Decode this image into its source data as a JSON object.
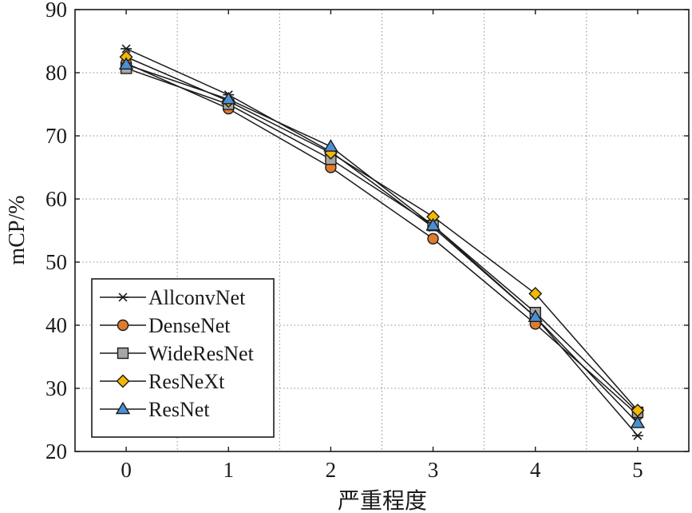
{
  "chart_data": {
    "type": "line",
    "xlabel": "严重程度",
    "ylabel": "mCP/%",
    "x": [
      0,
      1,
      2,
      3,
      4,
      5
    ],
    "xticks": [
      "0",
      "1",
      "2",
      "3",
      "4",
      "5"
    ],
    "xlim": [
      -0.5,
      5.5
    ],
    "ylim": [
      20,
      90
    ],
    "yticks": [
      "20",
      "30",
      "40",
      "50",
      "60",
      "70",
      "80",
      "90"
    ],
    "grid": true,
    "legend_position": "bottom-left",
    "series": [
      {
        "name": "AllconvNet",
        "marker": "asterisk",
        "color": "#1a1a1a",
        "values": [
          83.8,
          76.5,
          67.5,
          55.5,
          41.3,
          22.5
        ]
      },
      {
        "name": "DenseNet",
        "marker": "circle",
        "color": "#e07b2e",
        "values": [
          81.5,
          74.3,
          65.0,
          53.7,
          40.2,
          25.8
        ]
      },
      {
        "name": "WideResNet",
        "marker": "square",
        "color": "#a6a6a6",
        "values": [
          80.7,
          75.0,
          66.3,
          55.8,
          42.0,
          26.2
        ]
      },
      {
        "name": "ResNeXt",
        "marker": "diamond",
        "color": "#f5b800",
        "values": [
          82.5,
          75.5,
          67.3,
          57.2,
          45.0,
          26.5
        ]
      },
      {
        "name": "ResNet",
        "marker": "triangle",
        "color": "#4a8fd4",
        "values": [
          81.3,
          75.8,
          68.3,
          55.8,
          41.3,
          24.5
        ]
      }
    ]
  }
}
